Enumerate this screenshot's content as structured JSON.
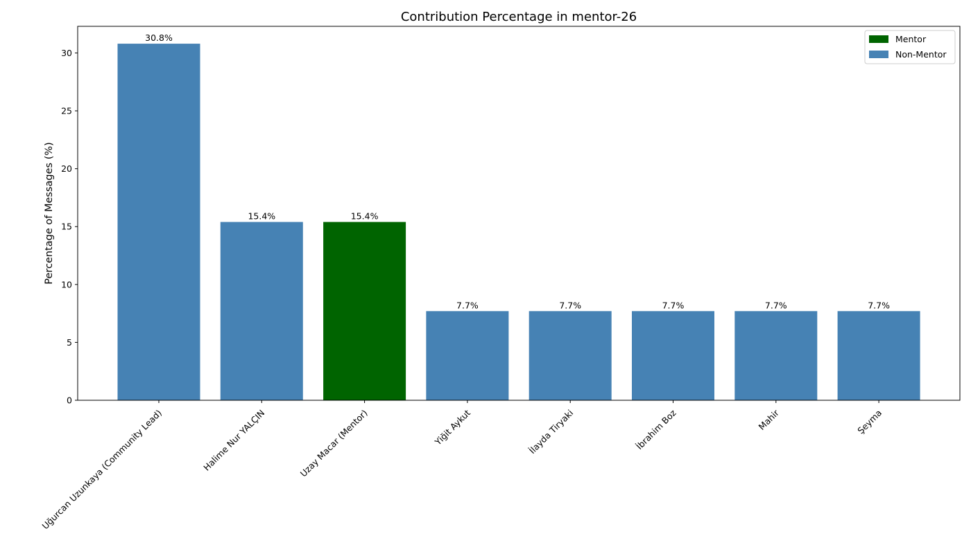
{
  "chart_data": {
    "type": "bar",
    "title": "Contribution Percentage in mentor-26",
    "xlabel": "",
    "ylabel": "Percentage of Messages (%)",
    "ylim": [
      0,
      32.3
    ],
    "yticks": [
      0,
      5,
      10,
      15,
      20,
      25,
      30
    ],
    "grid": false,
    "legend_position": "top-right",
    "categories": [
      "Uğurcan Uzunkaya (Community Lead)",
      "Halime Nur YALÇIN",
      "Uzay Macar (Mentor)",
      "Yiğit Aykut",
      "İlayda Tiryaki",
      "İbrahim Boz",
      "Mahir",
      "Şeyma"
    ],
    "values": [
      30.8,
      15.4,
      15.4,
      7.7,
      7.7,
      7.7,
      7.7,
      7.7
    ],
    "data_labels": [
      "30.8%",
      "15.4%",
      "15.4%",
      "7.7%",
      "7.7%",
      "7.7%",
      "7.7%",
      "7.7%"
    ],
    "groups": [
      "Non-Mentor",
      "Non-Mentor",
      "Mentor",
      "Non-Mentor",
      "Non-Mentor",
      "Non-Mentor",
      "Non-Mentor",
      "Non-Mentor"
    ],
    "legend": [
      {
        "label": "Mentor",
        "color": "#006400"
      },
      {
        "label": "Non-Mentor",
        "color": "#4682b4"
      }
    ]
  }
}
